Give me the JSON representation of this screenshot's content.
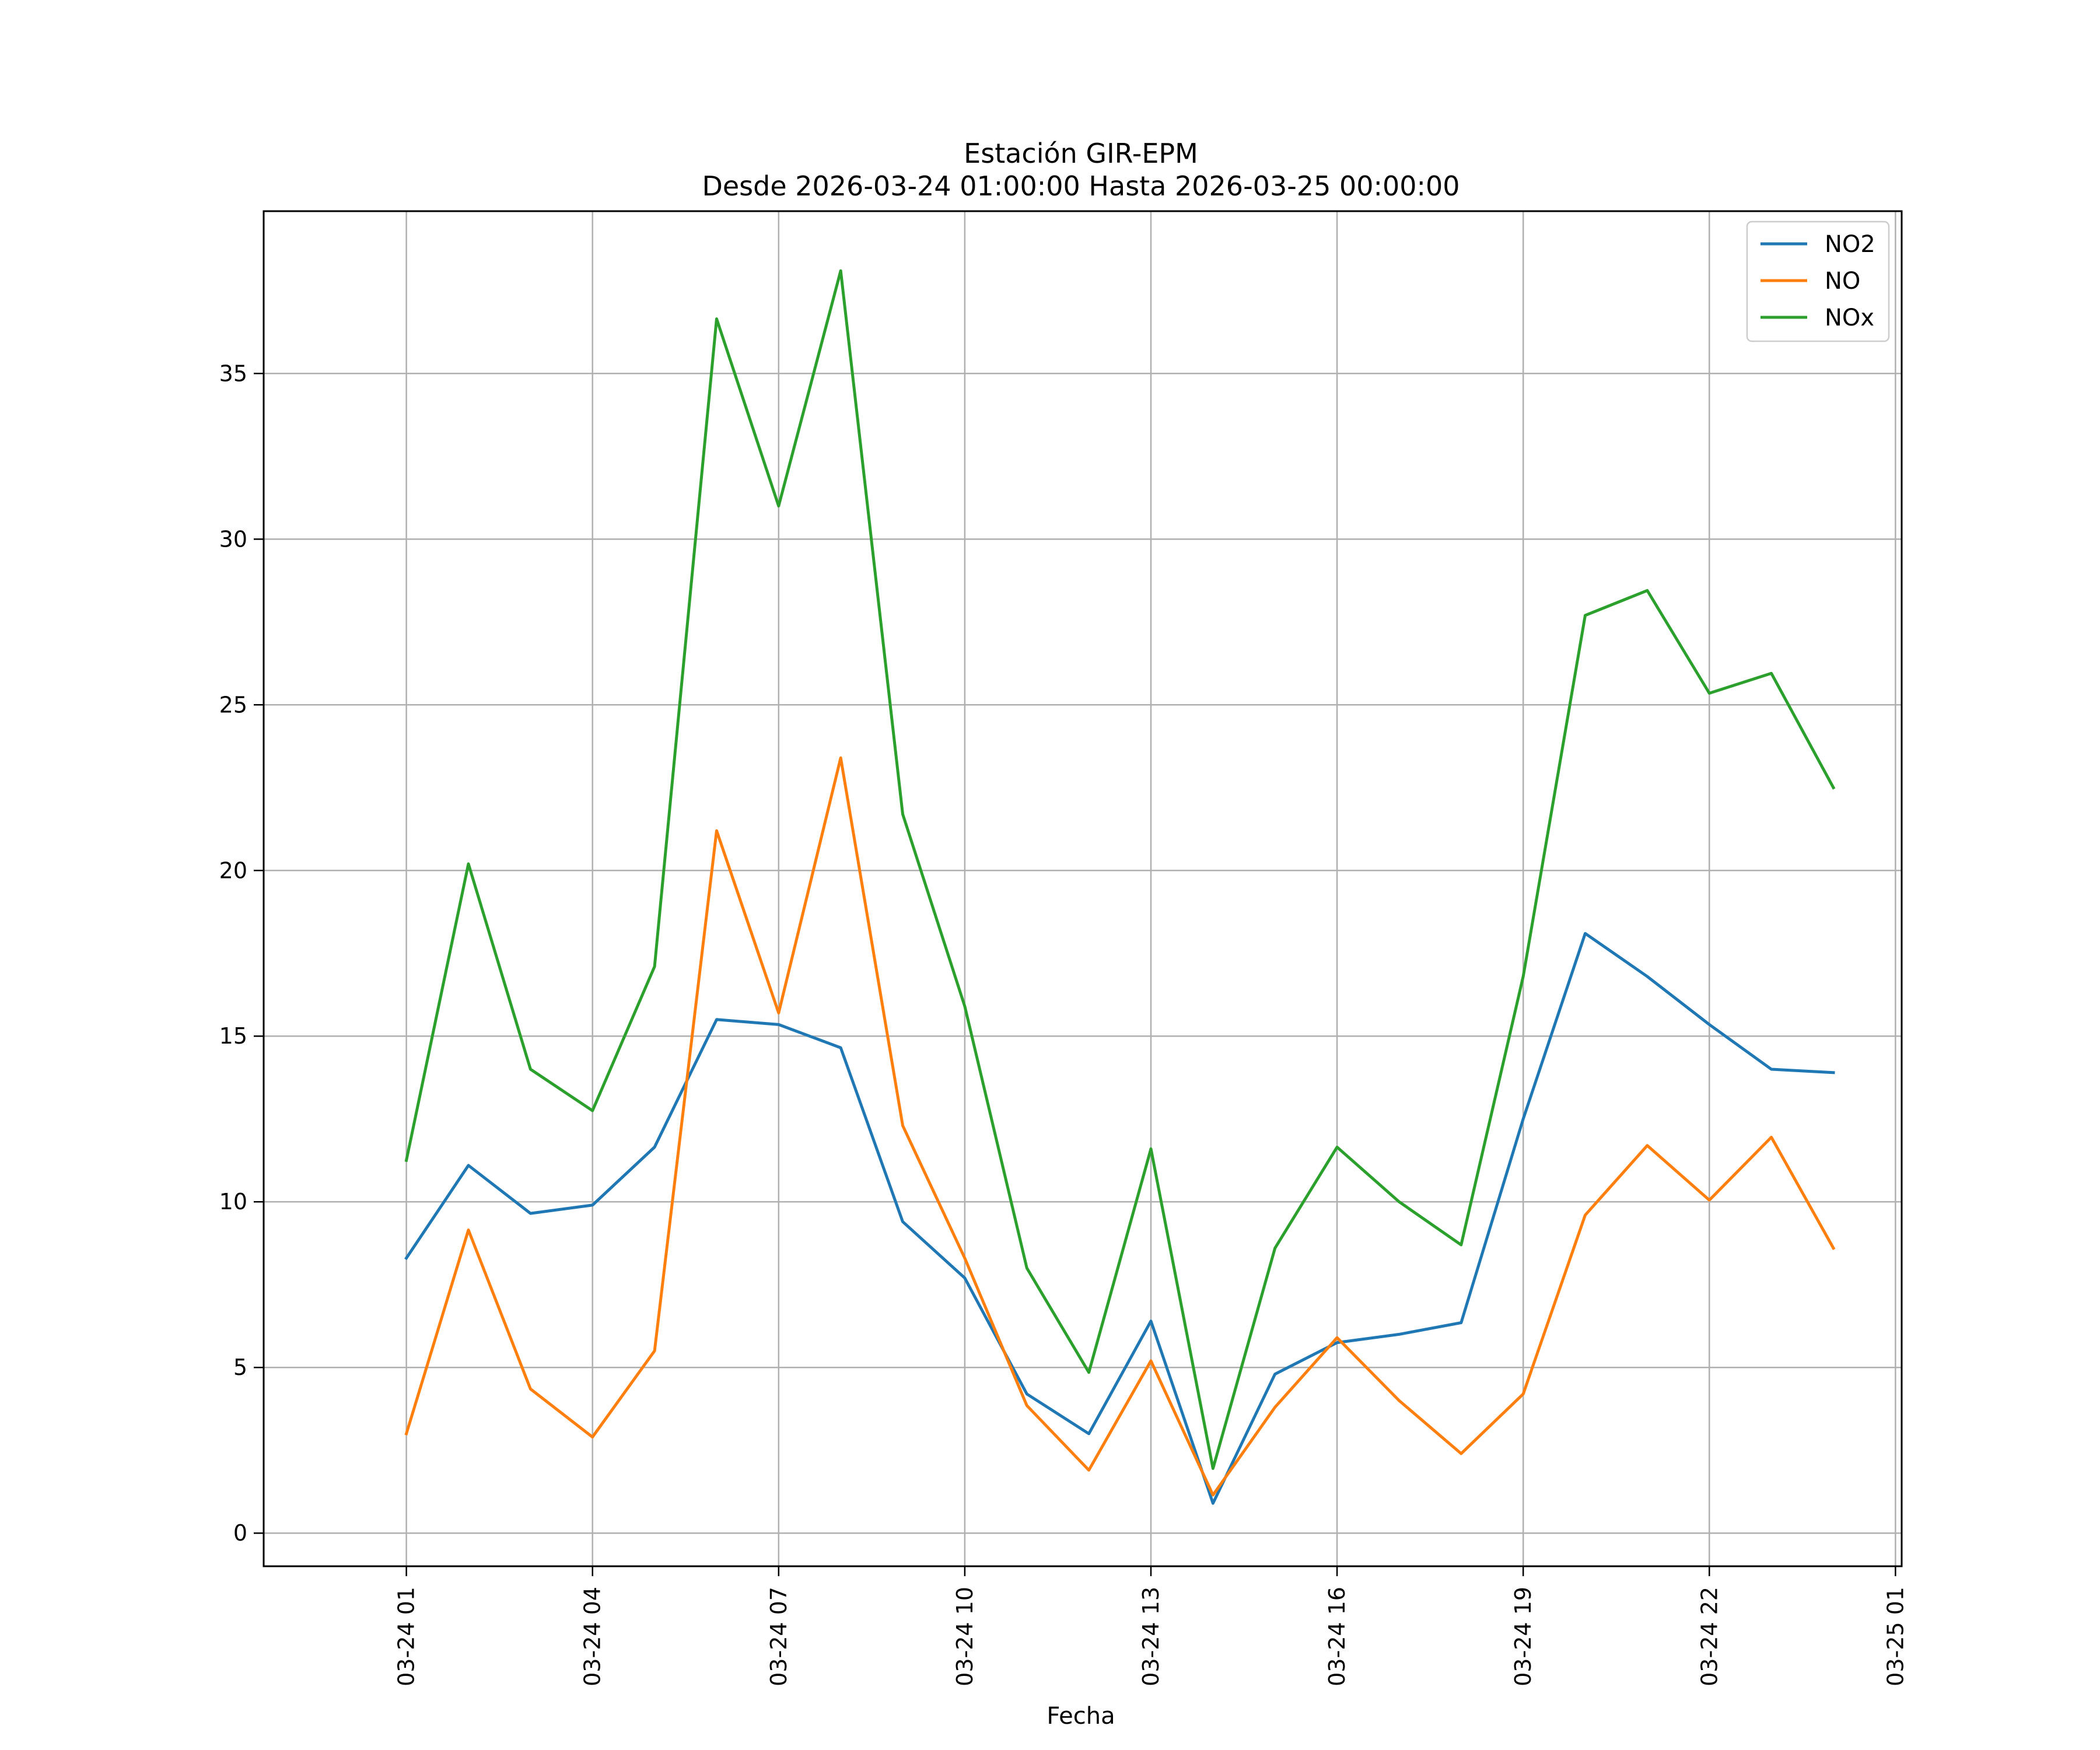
{
  "chart_data": {
    "type": "line",
    "title": [
      "Estación GIR-EPM",
      "Desde 2026-03-24 01:00:00 Hasta 2026-03-25 00:00:00"
    ],
    "xlabel": "Fecha",
    "ylabel": "",
    "x": [
      "2026-03-24 01:00",
      "2026-03-24 02:00",
      "2026-03-24 03:00",
      "2026-03-24 04:00",
      "2026-03-24 05:00",
      "2026-03-24 06:00",
      "2026-03-24 07:00",
      "2026-03-24 08:00",
      "2026-03-24 09:00",
      "2026-03-24 10:00",
      "2026-03-24 11:00",
      "2026-03-24 12:00",
      "2026-03-24 13:00",
      "2026-03-24 14:00",
      "2026-03-24 15:00",
      "2026-03-24 16:00",
      "2026-03-24 17:00",
      "2026-03-24 18:00",
      "2026-03-24 19:00",
      "2026-03-24 20:00",
      "2026-03-24 21:00",
      "2026-03-24 22:00",
      "2026-03-24 23:00",
      "2026-03-25 00:00"
    ],
    "xlim": [
      "2026-03-23 22:42",
      "2026-03-25 01:06"
    ],
    "x_ticks": [
      "2026-03-24 01:00",
      "2026-03-24 04:00",
      "2026-03-24 07:00",
      "2026-03-24 10:00",
      "2026-03-24 13:00",
      "2026-03-24 16:00",
      "2026-03-24 19:00",
      "2026-03-24 22:00",
      "2026-03-25 01:00"
    ],
    "x_tick_labels": [
      "03-24 01",
      "03-24 04",
      "03-24 07",
      "03-24 10",
      "03-24 13",
      "03-24 16",
      "03-24 19",
      "03-24 22",
      "03-25 01"
    ],
    "ylim": [
      -1.0,
      39.9
    ],
    "y_ticks": [
      0,
      5,
      10,
      15,
      20,
      25,
      30,
      35
    ],
    "grid": true,
    "legend_position": "top-right",
    "series": [
      {
        "name": "NO2",
        "color": "#1f77b4",
        "values": [
          8.3,
          11.1,
          9.65,
          9.9,
          11.65,
          15.5,
          15.35,
          14.65,
          9.4,
          7.7,
          4.2,
          3.0,
          6.4,
          0.9,
          4.8,
          5.75,
          6.0,
          6.35,
          12.5,
          18.1,
          16.8,
          15.35,
          14.0,
          13.9
        ]
      },
      {
        "name": "NO",
        "color": "#ff7f0e",
        "values": [
          3.0,
          9.15,
          4.35,
          2.9,
          5.5,
          21.2,
          15.7,
          23.4,
          12.3,
          8.3,
          3.85,
          1.9,
          5.2,
          1.15,
          3.8,
          5.9,
          4.0,
          2.4,
          4.2,
          9.6,
          11.7,
          10.05,
          11.95,
          8.6
        ]
      },
      {
        "name": "NOx",
        "color": "#2ca02c",
        "values": [
          11.25,
          20.2,
          14.0,
          12.75,
          17.1,
          36.65,
          31.0,
          38.1,
          21.7,
          15.9,
          8.0,
          4.85,
          11.6,
          1.95,
          8.6,
          11.65,
          10.0,
          8.7,
          16.8,
          27.7,
          28.45,
          25.35,
          25.95,
          22.5
        ]
      }
    ]
  }
}
